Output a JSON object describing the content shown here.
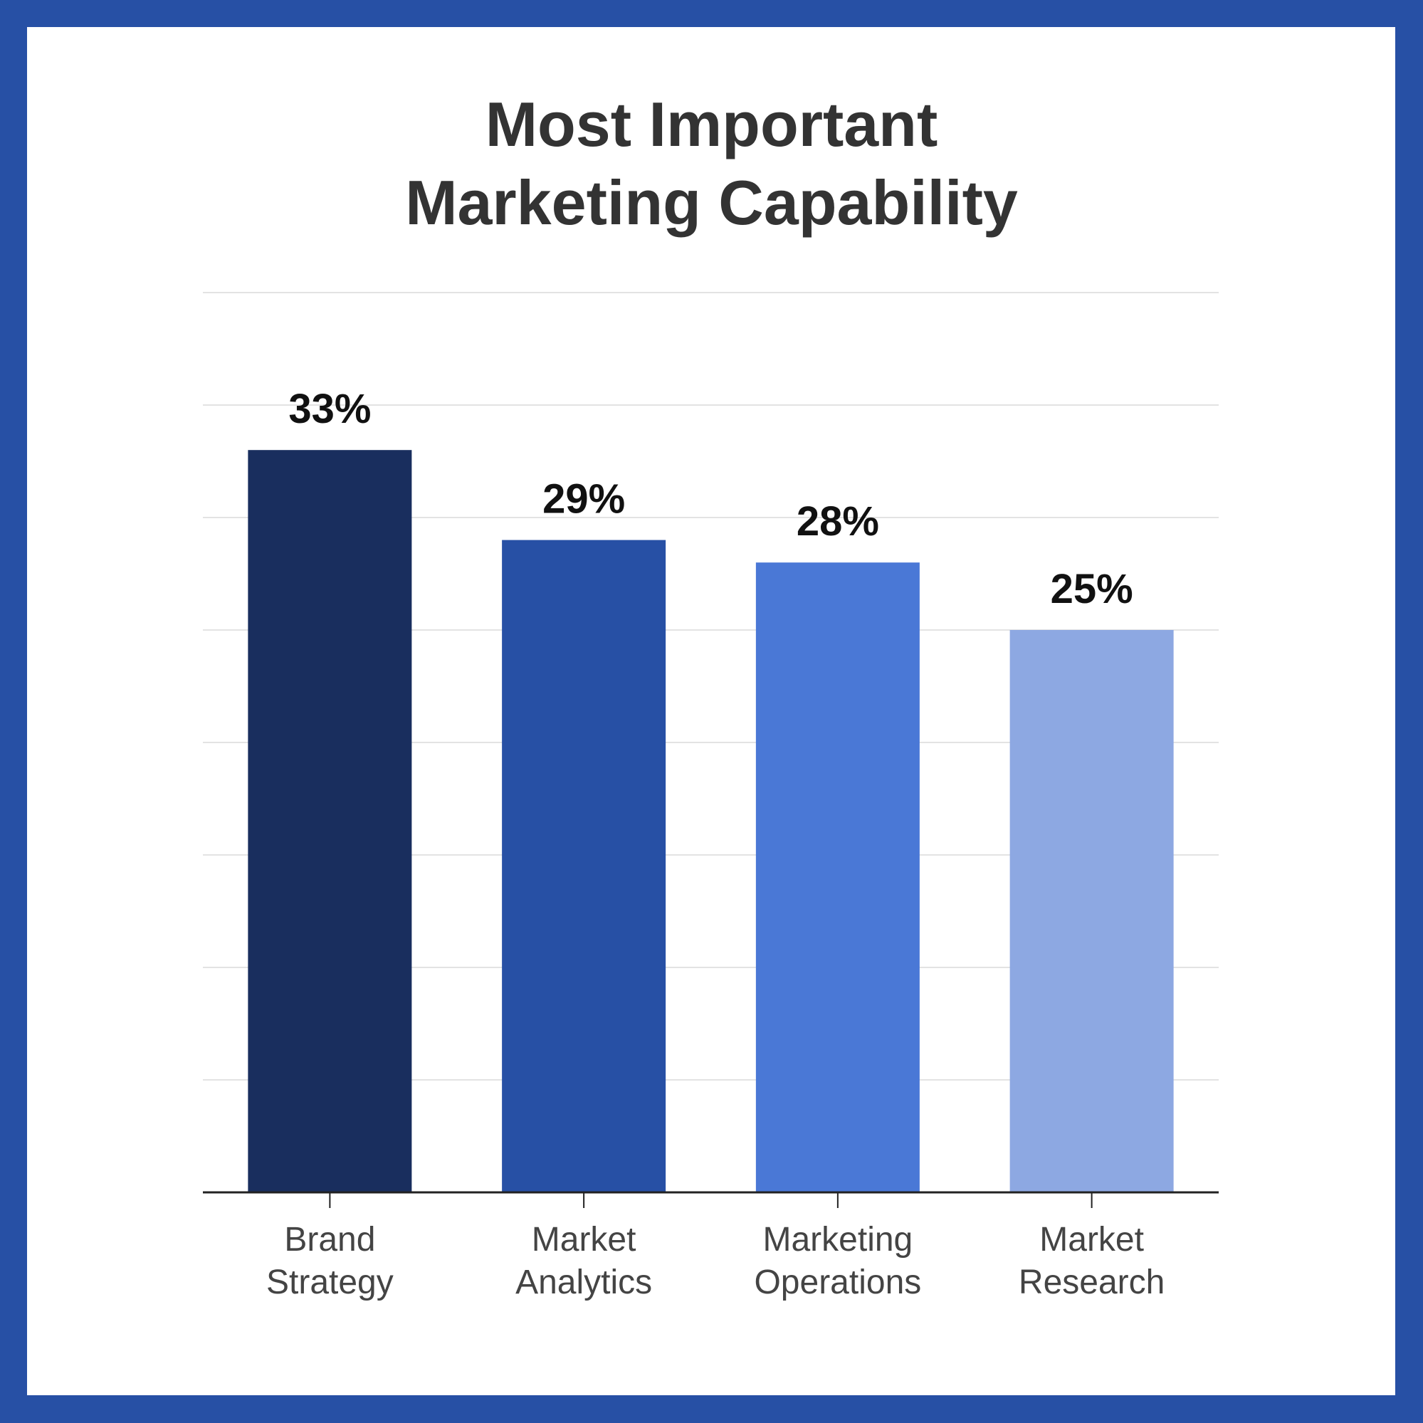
{
  "colors": {
    "frame": "#2750a5",
    "background": "#ffffff",
    "gridline": "#e3e3e3",
    "axis": "#222222",
    "title": "#333333"
  },
  "chart_data": {
    "type": "bar",
    "title_lines": [
      "Most Important",
      "Marketing Capability"
    ],
    "xlabel": "",
    "ylabel": "",
    "grid": true,
    "legend": "none",
    "ylim": [
      0,
      40
    ],
    "categories": [
      [
        "Brand",
        "Strategy"
      ],
      [
        "Market",
        "Analytics"
      ],
      [
        "Marketing",
        "Operations"
      ],
      [
        "Market",
        "Research"
      ]
    ],
    "values": [
      33,
      29,
      28,
      25
    ],
    "value_labels": [
      "33%",
      "29%",
      "28%",
      "25%"
    ],
    "bar_colors": [
      "#192e5e",
      "#2750a5",
      "#4a78d6",
      "#8da8e2"
    ]
  }
}
